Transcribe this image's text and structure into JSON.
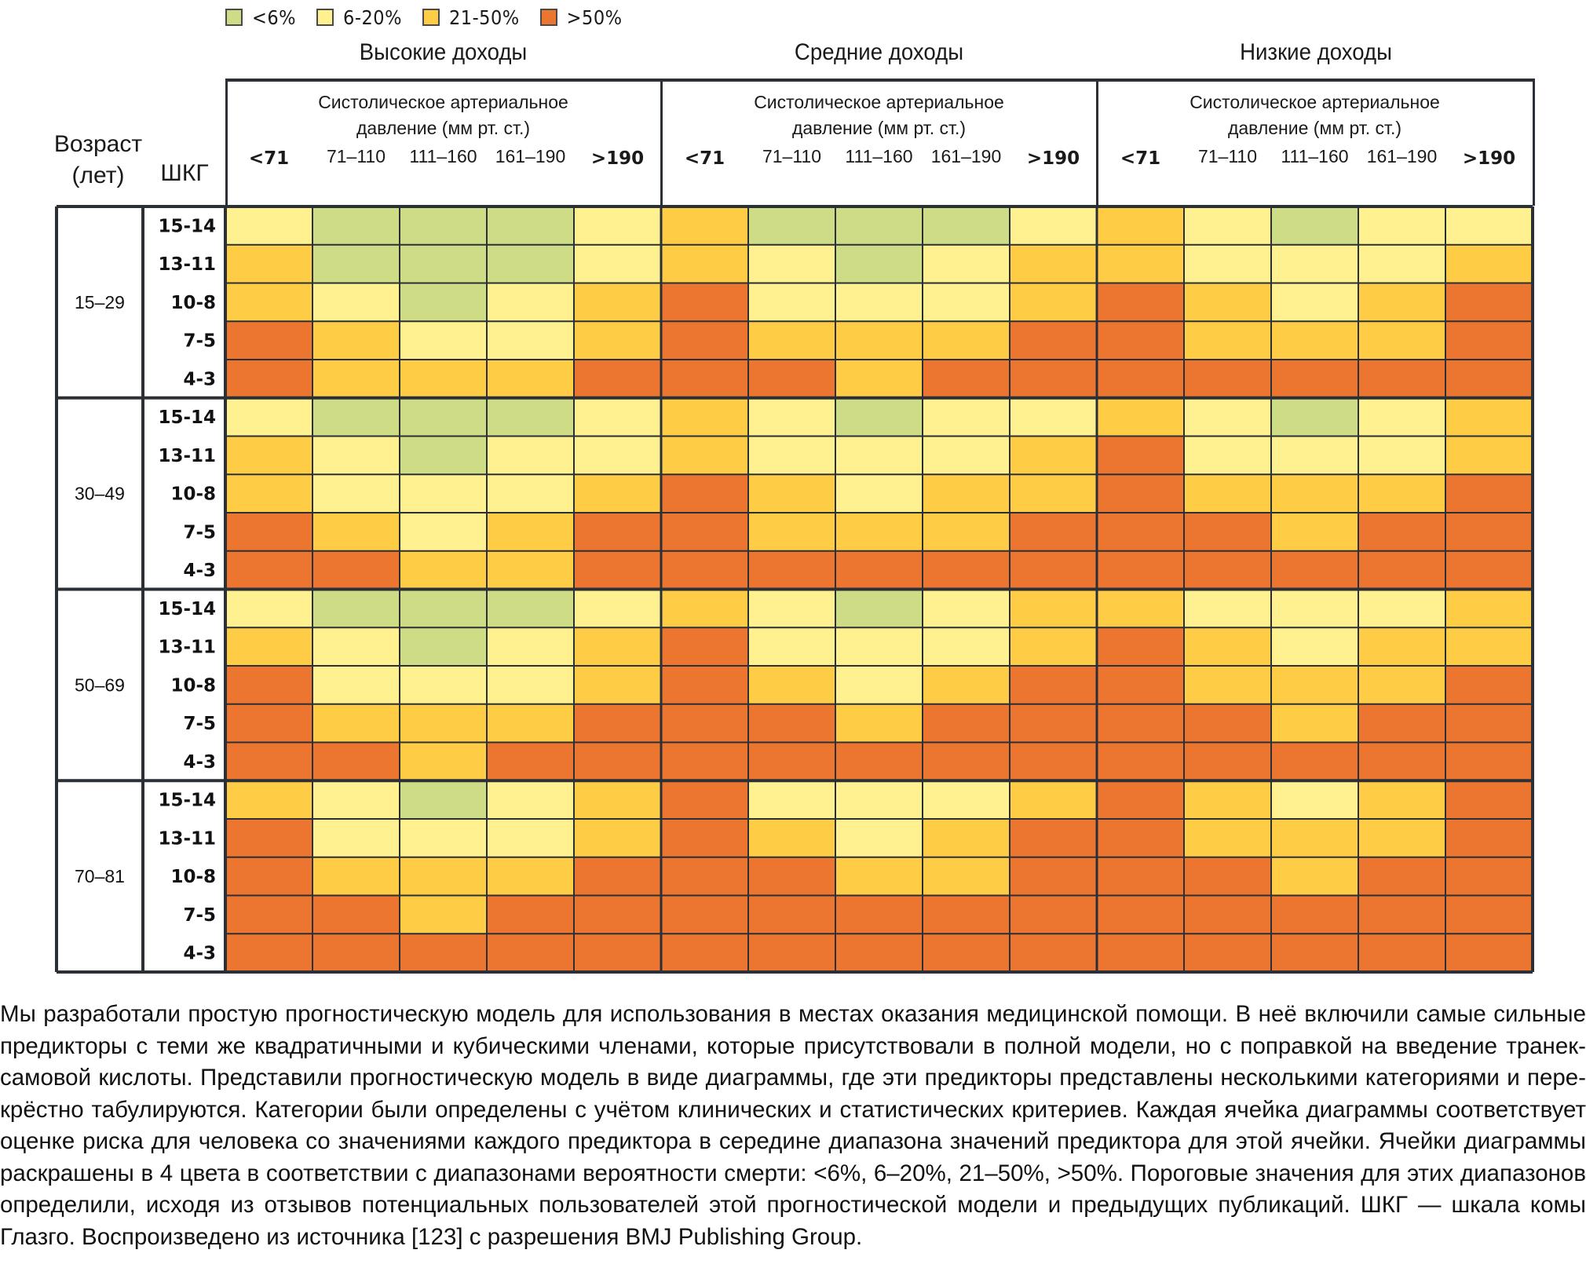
{
  "legend": [
    {
      "key": "G",
      "label": "<6%",
      "color": "#cfdc86"
    },
    {
      "key": "Y",
      "label": "6-20%",
      "color": "#fff18f"
    },
    {
      "key": "O",
      "label": "21-50%",
      "color": "#ffcc45"
    },
    {
      "key": "R",
      "label": ">50%",
      "color": "#ec7530"
    }
  ],
  "header": {
    "age_label_line1": "Возраст",
    "age_label_line2": "(лет)",
    "gcs_label": "ШКГ",
    "sbp_title_line1": "Систолическое артериальное",
    "sbp_title_line2": "давление (мм рт. ст.)"
  },
  "chart_data": {
    "type": "heatmap",
    "title": "",
    "legend_placement": "top",
    "categories_legend": [
      "<6%",
      "6-20%",
      "21-50%",
      ">50%"
    ],
    "income_groups": [
      "Высокие доходы",
      "Средние доходы",
      "Низкие доходы"
    ],
    "sbp_categories": [
      "<71",
      "71–110",
      "111–160",
      "161–190",
      ">190"
    ],
    "sbp_bold": [
      true,
      false,
      false,
      false,
      true
    ],
    "xlabel": "Систолическое артериальное давление (мм рт. ст.)",
    "ylabel_age": "Возраст (лет)",
    "ylabel_gcs": "ШКГ",
    "age_groups": [
      "15–29",
      "30–49",
      "50–69",
      "70–81"
    ],
    "gcs_categories": [
      "15-14",
      "13-11",
      "10-8",
      "7-5",
      "4-3"
    ],
    "cell_value_encoding": "G = <6%, Y = 6-20%, O = 21-50%, R = >50% (mortality risk)",
    "cells": {
      "Высокие доходы": {
        "15–29": [
          [
            "Y",
            "G",
            "G",
            "G",
            "Y"
          ],
          [
            "O",
            "G",
            "G",
            "G",
            "Y"
          ],
          [
            "O",
            "Y",
            "G",
            "Y",
            "O"
          ],
          [
            "R",
            "O",
            "Y",
            "Y",
            "O"
          ],
          [
            "R",
            "O",
            "O",
            "O",
            "R"
          ]
        ],
        "30–49": [
          [
            "Y",
            "G",
            "G",
            "G",
            "Y"
          ],
          [
            "O",
            "Y",
            "G",
            "Y",
            "Y"
          ],
          [
            "O",
            "Y",
            "Y",
            "Y",
            "O"
          ],
          [
            "R",
            "O",
            "Y",
            "O",
            "R"
          ],
          [
            "R",
            "R",
            "O",
            "O",
            "R"
          ]
        ],
        "50–69": [
          [
            "Y",
            "G",
            "G",
            "G",
            "Y"
          ],
          [
            "O",
            "Y",
            "G",
            "Y",
            "O"
          ],
          [
            "R",
            "Y",
            "Y",
            "Y",
            "O"
          ],
          [
            "R",
            "O",
            "O",
            "O",
            "R"
          ],
          [
            "R",
            "R",
            "O",
            "R",
            "R"
          ]
        ],
        "70–81": [
          [
            "O",
            "Y",
            "G",
            "Y",
            "O"
          ],
          [
            "R",
            "Y",
            "Y",
            "Y",
            "O"
          ],
          [
            "R",
            "O",
            "O",
            "O",
            "R"
          ],
          [
            "R",
            "R",
            "O",
            "R",
            "R"
          ],
          [
            "R",
            "R",
            "R",
            "R",
            "R"
          ]
        ]
      },
      "Средние доходы": {
        "15–29": [
          [
            "O",
            "G",
            "G",
            "G",
            "Y"
          ],
          [
            "O",
            "Y",
            "G",
            "Y",
            "O"
          ],
          [
            "R",
            "Y",
            "Y",
            "Y",
            "O"
          ],
          [
            "R",
            "O",
            "O",
            "O",
            "R"
          ],
          [
            "R",
            "R",
            "O",
            "R",
            "R"
          ]
        ],
        "30–49": [
          [
            "O",
            "Y",
            "G",
            "Y",
            "Y"
          ],
          [
            "O",
            "Y",
            "Y",
            "Y",
            "O"
          ],
          [
            "R",
            "O",
            "Y",
            "O",
            "O"
          ],
          [
            "R",
            "O",
            "O",
            "O",
            "R"
          ],
          [
            "R",
            "R",
            "R",
            "R",
            "R"
          ]
        ],
        "50–69": [
          [
            "O",
            "Y",
            "G",
            "Y",
            "O"
          ],
          [
            "R",
            "Y",
            "Y",
            "Y",
            "O"
          ],
          [
            "R",
            "O",
            "Y",
            "O",
            "R"
          ],
          [
            "R",
            "R",
            "O",
            "R",
            "R"
          ],
          [
            "R",
            "R",
            "R",
            "R",
            "R"
          ]
        ],
        "70–81": [
          [
            "R",
            "Y",
            "Y",
            "Y",
            "O"
          ],
          [
            "R",
            "O",
            "Y",
            "O",
            "R"
          ],
          [
            "R",
            "R",
            "O",
            "O",
            "R"
          ],
          [
            "R",
            "R",
            "R",
            "R",
            "R"
          ],
          [
            "R",
            "R",
            "R",
            "R",
            "R"
          ]
        ]
      },
      "Низкие доходы": {
        "15–29": [
          [
            "O",
            "Y",
            "G",
            "Y",
            "Y"
          ],
          [
            "O",
            "Y",
            "Y",
            "Y",
            "O"
          ],
          [
            "R",
            "O",
            "Y",
            "O",
            "R"
          ],
          [
            "R",
            "O",
            "O",
            "O",
            "R"
          ],
          [
            "R",
            "R",
            "R",
            "R",
            "R"
          ]
        ],
        "30–49": [
          [
            "O",
            "Y",
            "G",
            "Y",
            "O"
          ],
          [
            "R",
            "Y",
            "Y",
            "Y",
            "O"
          ],
          [
            "R",
            "O",
            "O",
            "O",
            "R"
          ],
          [
            "R",
            "R",
            "O",
            "R",
            "R"
          ],
          [
            "R",
            "R",
            "R",
            "R",
            "R"
          ]
        ],
        "50–69": [
          [
            "O",
            "Y",
            "Y",
            "Y",
            "O"
          ],
          [
            "R",
            "O",
            "Y",
            "O",
            "O"
          ],
          [
            "R",
            "O",
            "O",
            "O",
            "R"
          ],
          [
            "R",
            "R",
            "O",
            "R",
            "R"
          ],
          [
            "R",
            "R",
            "R",
            "R",
            "R"
          ]
        ],
        "70–81": [
          [
            "R",
            "O",
            "Y",
            "O",
            "R"
          ],
          [
            "R",
            "O",
            "O",
            "O",
            "R"
          ],
          [
            "R",
            "R",
            "O",
            "R",
            "R"
          ],
          [
            "R",
            "R",
            "R",
            "R",
            "R"
          ],
          [
            "R",
            "R",
            "R",
            "R",
            "R"
          ]
        ]
      }
    }
  },
  "caption_lines": [
    "Мы разработали простую прогностическую модель для использования в местах оказания медицинской помощи. В неё включили самые сильные",
    "предикторы с теми же квадратичными и кубическими членами, которые присутствовали в полной модели, но с поправкой на введение транек-",
    "самовой кислоты. Представили прогностическую модель в виде диаграммы, где эти предикторы представлены несколькими категориями и пере-",
    "крёстно табулируются. Категории были определены с учётом клинических и статистических критериев. Каждая ячейка диаграммы соответствует",
    "оценке риска для человека со значениями каждого предиктора в середине диапазона значений предиктора для этой ячейки. Ячейки диаграммы",
    "раскрашены в 4 цвета в соответствии с диапазонами вероятности смерти: <6%, 6–20%, 21–50%, >50%. Пороговые значения для этих диапазонов",
    "определили, исходя из отзывов потенциальных пользователей этой прогностической модели и предыдущих публикаций. ШКГ — шкала комы",
    "Глазго. Воспроизведено из источника [123] с разрешения BMJ Publishing Group."
  ],
  "colors": {
    "grid_line": "#2b2f36",
    "text": "#1a1a1a"
  }
}
